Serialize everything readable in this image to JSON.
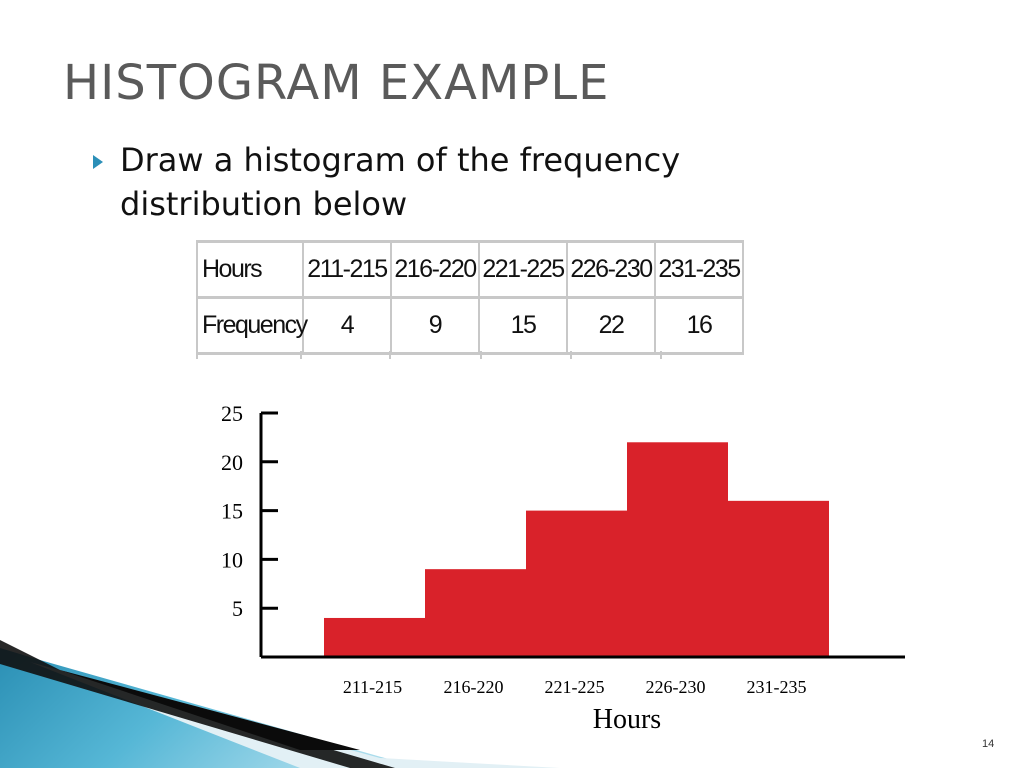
{
  "slide": {
    "title": "HISTOGRAM EXAMPLE",
    "bullet": "Draw a histogram of the frequency distribution below",
    "page_number": "14"
  },
  "table": {
    "row_labels": [
      "Hours",
      "Frequency"
    ],
    "hours": [
      "211-215",
      "216-220",
      "221-225",
      "226-230",
      "231-235"
    ],
    "frequency": [
      "4",
      "9",
      "15",
      "22",
      "16"
    ]
  },
  "chart_data": {
    "type": "bar",
    "categories": [
      "211-215",
      "216-220",
      "221-225",
      "226-230",
      "231-235"
    ],
    "values": [
      4,
      9,
      15,
      22,
      16
    ],
    "title": "",
    "xlabel": "Hours",
    "ylabel": "",
    "ylim": [
      0,
      25
    ],
    "yticks": [
      5,
      10,
      15,
      20,
      25
    ],
    "bar_color": "#d9222a",
    "grid": false,
    "bar_gap": 0
  },
  "colors": {
    "title": "#5a5a5a",
    "bullet": "#2b8fb8",
    "bar": "#d9222a",
    "accent_blue": "#3aa2c4"
  }
}
